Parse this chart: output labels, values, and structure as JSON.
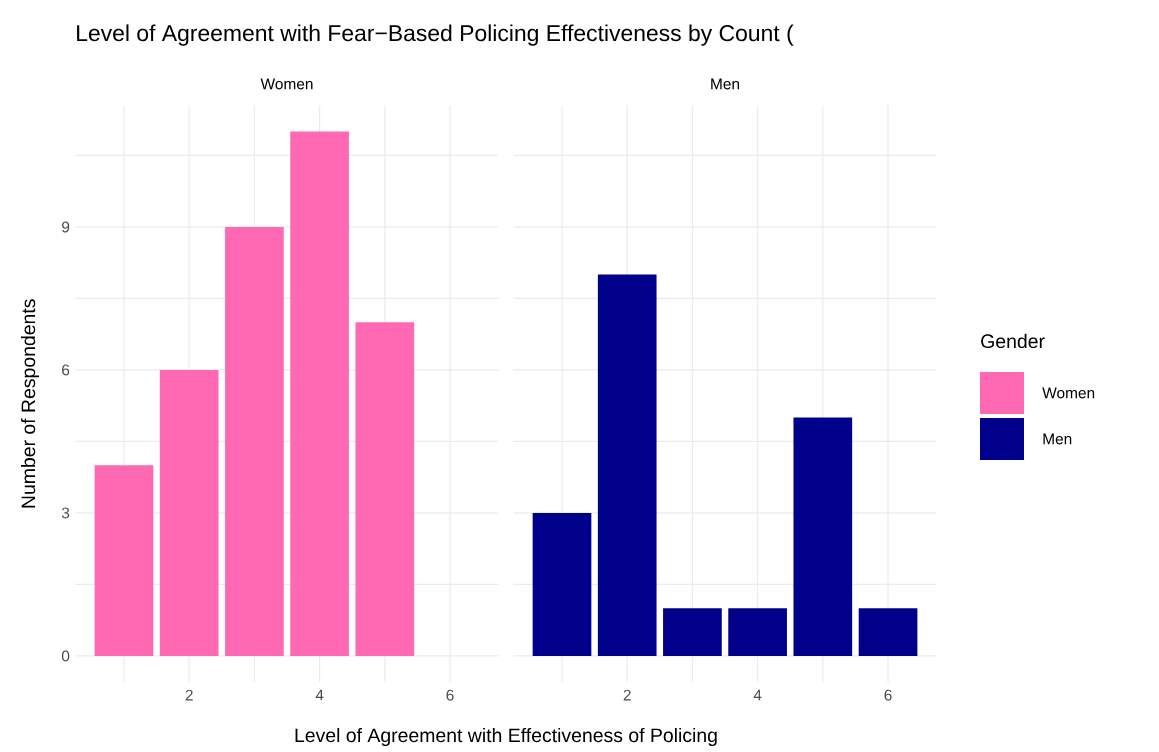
{
  "chart_data": [
    {
      "type": "bar",
      "title": "Level of Agreement with Fear−Based Policing Effectiveness by Count (",
      "subtitle": "Women",
      "xlabel": "Level of Agreement with Effectiveness of Policing",
      "ylabel": "Number of Respondents",
      "series": [
        {
          "name": "Women",
          "color": "#ff69b4",
          "x": [
            1,
            2,
            3,
            4,
            5
          ],
          "values": [
            4,
            6,
            9,
            11,
            7
          ]
        }
      ],
      "xlim": [
        0.255,
        6.745
      ],
      "ylim": [
        -0.55,
        11.55
      ],
      "xticks": [
        {
          "value": 1,
          "label": null
        },
        2,
        {
          "value": 3,
          "label": null
        },
        4,
        {
          "value": 5,
          "label": null
        },
        6
      ],
      "yticks": [
        0,
        {
          "value": 1.5,
          "label": null
        },
        3,
        {
          "value": 4.5,
          "label": null
        },
        6,
        {
          "value": 7.5,
          "label": null
        },
        9,
        {
          "value": 10.5,
          "label": null
        }
      ],
      "grid": true,
      "legend": "right"
    },
    {
      "type": "bar",
      "subtitle": "Men",
      "legend_title": "Gender",
      "series": [
        {
          "name": "Men",
          "color": "#00008b",
          "x": [
            1,
            2,
            3,
            4,
            5,
            6
          ],
          "values": [
            3,
            8,
            1,
            1,
            5,
            1
          ]
        }
      ],
      "xlim": [
        0.255,
        6.745
      ],
      "ylim": [
        -0.55,
        11.55
      ],
      "xticks": [
        {
          "value": 1,
          "label": null
        },
        2,
        {
          "value": 3,
          "label": null
        },
        4,
        {
          "value": 5,
          "label": null
        },
        6
      ],
      "yticks": [
        0,
        {
          "value": 1.5,
          "label": null
        },
        3,
        {
          "value": 4.5,
          "label": null
        },
        6,
        {
          "value": 7.5,
          "label": null
        },
        9,
        {
          "value": 10.5,
          "label": null
        }
      ],
      "grid": true,
      "legend": "right",
      "tick_labels": "x"
    }
  ]
}
